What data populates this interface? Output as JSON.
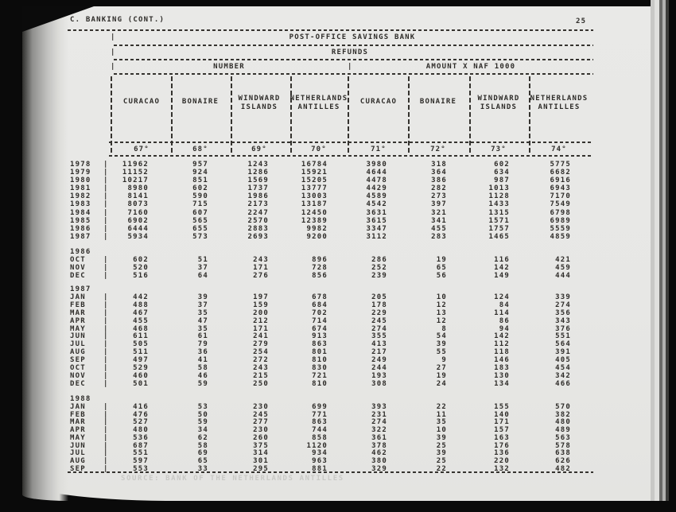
{
  "page": {
    "section_header": "C. BANKING (CONT.)",
    "page_number": "25"
  },
  "glyphs": {
    "pipe": "|"
  },
  "colors": {
    "paper": "#e9e9e7",
    "ink": "#2e2c29",
    "ghost": "#c9c9c6"
  },
  "table": {
    "title": "POST-OFFICE SAVINGS BANK",
    "subtitle": "REFUNDS",
    "group_headers": [
      "NUMBER",
      "AMOUNT X NAF 1000"
    ],
    "columns": [
      {
        "label": [
          "CURACAO"
        ],
        "num": "67°"
      },
      {
        "label": [
          "BONAIRE"
        ],
        "num": "68°"
      },
      {
        "label": [
          "WINDWARD",
          "ISLANDS"
        ],
        "num": "69°"
      },
      {
        "label": [
          "NETHERLANDS",
          "ANTILLES"
        ],
        "num": "70°"
      },
      {
        "label": [
          "CURACAO"
        ],
        "num": "71°"
      },
      {
        "label": [
          "BONAIRE"
        ],
        "num": "72°"
      },
      {
        "label": [
          "WINDWARD",
          "ISLANDS"
        ],
        "num": "73°"
      },
      {
        "label": [
          "NETHERLANDS",
          "ANTILLES"
        ],
        "num": "74°"
      }
    ],
    "sections": [
      {
        "group": null,
        "rows": [
          {
            "label": "1978",
            "values": [
              "11962",
              "957",
              "1243",
              "16784",
              "3980",
              "318",
              "602",
              "5775"
            ]
          },
          {
            "label": "1979",
            "values": [
              "11152",
              "924",
              "1286",
              "15921",
              "4644",
              "364",
              "634",
              "6682"
            ]
          },
          {
            "label": "1980",
            "values": [
              "10217",
              "851",
              "1569",
              "15205",
              "4478",
              "386",
              "987",
              "6916"
            ]
          },
          {
            "label": "1981",
            "values": [
              "8980",
              "602",
              "1737",
              "13777",
              "4429",
              "282",
              "1013",
              "6943"
            ]
          },
          {
            "label": "1982",
            "values": [
              "8141",
              "590",
              "1986",
              "13003",
              "4589",
              "273",
              "1128",
              "7170"
            ]
          },
          {
            "label": "1983",
            "values": [
              "8073",
              "715",
              "2173",
              "13187",
              "4542",
              "397",
              "1433",
              "7549"
            ]
          },
          {
            "label": "1984",
            "values": [
              "7160",
              "607",
              "2247",
              "12450",
              "3631",
              "321",
              "1315",
              "6798"
            ]
          },
          {
            "label": "1985",
            "values": [
              "6902",
              "565",
              "2570",
              "12389",
              "3615",
              "341",
              "1571",
              "6989"
            ]
          },
          {
            "label": "1986",
            "values": [
              "6444",
              "655",
              "2883",
              "9982",
              "3347",
              "455",
              "1757",
              "5559"
            ]
          },
          {
            "label": "1987",
            "values": [
              "5934",
              "573",
              "2693",
              "9200",
              "3112",
              "283",
              "1465",
              "4859"
            ]
          }
        ]
      },
      {
        "group": "1986",
        "rows": [
          {
            "label": "OCT",
            "values": [
              "602",
              "51",
              "243",
              "896",
              "286",
              "19",
              "116",
              "421"
            ]
          },
          {
            "label": "NOV",
            "values": [
              "520",
              "37",
              "171",
              "728",
              "252",
              "65",
              "142",
              "459"
            ]
          },
          {
            "label": "DEC",
            "values": [
              "516",
              "64",
              "276",
              "856",
              "239",
              "56",
              "149",
              "444"
            ]
          }
        ]
      },
      {
        "group": "1987",
        "rows": [
          {
            "label": "JAN",
            "values": [
              "442",
              "39",
              "197",
              "678",
              "205",
              "10",
              "124",
              "339"
            ]
          },
          {
            "label": "FEB",
            "values": [
              "488",
              "37",
              "159",
              "684",
              "178",
              "12",
              "84",
              "274"
            ]
          },
          {
            "label": "MAR",
            "values": [
              "467",
              "35",
              "200",
              "702",
              "229",
              "13",
              "114",
              "356"
            ]
          },
          {
            "label": "APR",
            "values": [
              "455",
              "47",
              "212",
              "714",
              "245",
              "12",
              "86",
              "343"
            ]
          },
          {
            "label": "MAY",
            "values": [
              "468",
              "35",
              "171",
              "674",
              "274",
              "8",
              "94",
              "376"
            ]
          },
          {
            "label": "JUN",
            "values": [
              "611",
              "61",
              "241",
              "913",
              "355",
              "54",
              "142",
              "551"
            ]
          },
          {
            "label": "JUL",
            "values": [
              "505",
              "79",
              "279",
              "863",
              "413",
              "39",
              "112",
              "564"
            ]
          },
          {
            "label": "AUG",
            "values": [
              "511",
              "36",
              "254",
              "801",
              "217",
              "55",
              "118",
              "391"
            ]
          },
          {
            "label": "SEP",
            "values": [
              "497",
              "41",
              "272",
              "810",
              "249",
              "9",
              "146",
              "405"
            ]
          },
          {
            "label": "OCT",
            "values": [
              "529",
              "58",
              "243",
              "830",
              "244",
              "27",
              "183",
              "454"
            ]
          },
          {
            "label": "NOV",
            "values": [
              "460",
              "46",
              "215",
              "721",
              "193",
              "19",
              "130",
              "342"
            ]
          },
          {
            "label": "DEC",
            "values": [
              "501",
              "59",
              "250",
              "810",
              "308",
              "24",
              "134",
              "466"
            ]
          }
        ]
      },
      {
        "group": "1988",
        "rows": [
          {
            "label": "JAN",
            "values": [
              "416",
              "53",
              "230",
              "699",
              "393",
              "22",
              "155",
              "570"
            ]
          },
          {
            "label": "FEB",
            "values": [
              "476",
              "50",
              "245",
              "771",
              "231",
              "11",
              "140",
              "382"
            ]
          },
          {
            "label": "MAR",
            "values": [
              "527",
              "59",
              "277",
              "863",
              "274",
              "35",
              "171",
              "480"
            ]
          },
          {
            "label": "APR",
            "values": [
              "480",
              "34",
              "230",
              "744",
              "322",
              "10",
              "157",
              "489"
            ]
          },
          {
            "label": "MAY",
            "values": [
              "536",
              "62",
              "260",
              "858",
              "361",
              "39",
              "163",
              "563"
            ]
          },
          {
            "label": "JUN",
            "values": [
              "687",
              "58",
              "375",
              "1120",
              "378",
              "25",
              "176",
              "578"
            ]
          },
          {
            "label": "JUL",
            "values": [
              "551",
              "69",
              "314",
              "934",
              "462",
              "39",
              "136",
              "638"
            ]
          },
          {
            "label": "AUG",
            "values": [
              "597",
              "65",
              "301",
              "963",
              "380",
              "25",
              "220",
              "626"
            ]
          },
          {
            "label": "SEP",
            "values": [
              "553",
              "33",
              "295",
              "881",
              "329",
              "22",
              "132",
              "482"
            ]
          }
        ]
      }
    ],
    "ghost_footer": "SOURCE: BANK OF THE NETHERLANDS ANTILLES"
  }
}
